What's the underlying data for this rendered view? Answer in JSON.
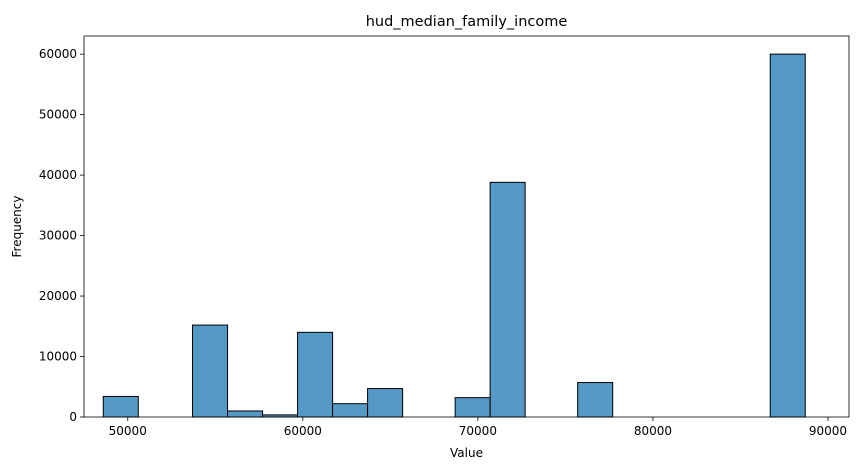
{
  "chart_data": {
    "type": "bar",
    "title": "hud_median_family_income",
    "xlabel": "Value",
    "ylabel": "Frequency",
    "xlim": [
      47500,
      91200
    ],
    "ylim": [
      0,
      63000
    ],
    "xticks": [
      50000,
      60000,
      70000,
      80000,
      90000
    ],
    "yticks": [
      0,
      10000,
      20000,
      30000,
      40000,
      50000,
      60000
    ],
    "grid": false,
    "bar_color": "#5599c7",
    "edge_color": "#000000",
    "bins": [
      {
        "x0": 48600,
        "x1": 50600,
        "count": 3400
      },
      {
        "x0": 53700,
        "x1": 55700,
        "count": 15200
      },
      {
        "x0": 55700,
        "x1": 57700,
        "count": 1000
      },
      {
        "x0": 57700,
        "x1": 59700,
        "count": 350
      },
      {
        "x0": 59700,
        "x1": 61700,
        "count": 14000
      },
      {
        "x0": 61700,
        "x1": 63700,
        "count": 2200
      },
      {
        "x0": 63700,
        "x1": 65700,
        "count": 4700
      },
      {
        "x0": 68700,
        "x1": 70700,
        "count": 3200
      },
      {
        "x0": 70700,
        "x1": 72700,
        "count": 38800
      },
      {
        "x0": 75700,
        "x1": 77700,
        "count": 5700
      },
      {
        "x0": 86700,
        "x1": 88700,
        "count": 60000
      }
    ]
  }
}
